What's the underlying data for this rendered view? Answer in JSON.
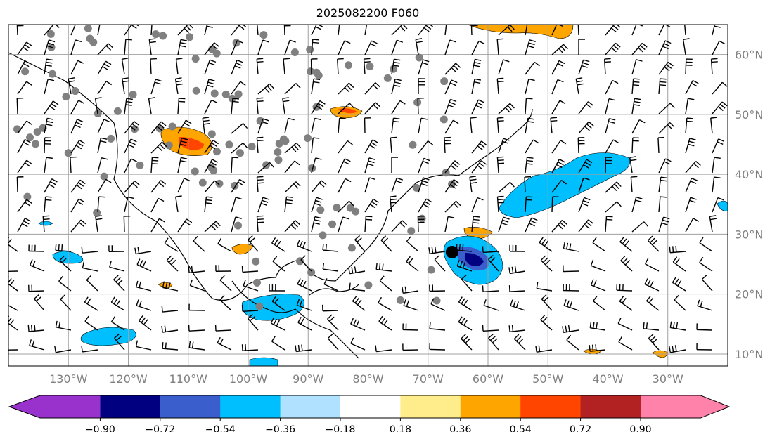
{
  "title": "2025082200 F060",
  "map": {
    "extent": {
      "lon_min": -140,
      "lon_max": -20,
      "lat_min": 8,
      "lat_max": 65
    },
    "lon_labels": [
      {
        "lon": -130,
        "text": "130°W"
      },
      {
        "lon": -120,
        "text": "120°W"
      },
      {
        "lon": -110,
        "text": "110°W"
      },
      {
        "lon": -100,
        "text": "100°W"
      },
      {
        "lon": -90,
        "text": "90°W"
      },
      {
        "lon": -80,
        "text": "80°W"
      },
      {
        "lon": -70,
        "text": "70°W"
      },
      {
        "lon": -60,
        "text": "60°W"
      },
      {
        "lon": -50,
        "text": "50°W"
      },
      {
        "lon": -40,
        "text": "40°W"
      },
      {
        "lon": -30,
        "text": "30°W"
      }
    ],
    "lat_labels": [
      {
        "lat": 60,
        "text": "60°N"
      },
      {
        "lat": 50,
        "text": "50°N"
      },
      {
        "lat": 40,
        "text": "40°N"
      },
      {
        "lat": 30,
        "text": "30°N"
      },
      {
        "lat": 20,
        "text": "20°N"
      },
      {
        "lat": 10,
        "text": "10°N"
      }
    ],
    "grid_color": "#a0a0a0",
    "storm_center": {
      "lon": -66,
      "lat": 27
    }
  },
  "colorbar": {
    "colors": [
      "#9932cc",
      "#000080",
      "#3a5fcd",
      "#00bfff",
      "#b0e2ff",
      "#ffffff",
      "#ffec8b",
      "#ffa500",
      "#ff4500",
      "#b22222",
      "#ff82ab"
    ],
    "ticks": [
      "−0.90",
      "−0.72",
      "−0.54",
      "−0.36",
      "−0.18",
      "0.18",
      "0.36",
      "0.54",
      "0.72",
      "0.90"
    ]
  }
}
